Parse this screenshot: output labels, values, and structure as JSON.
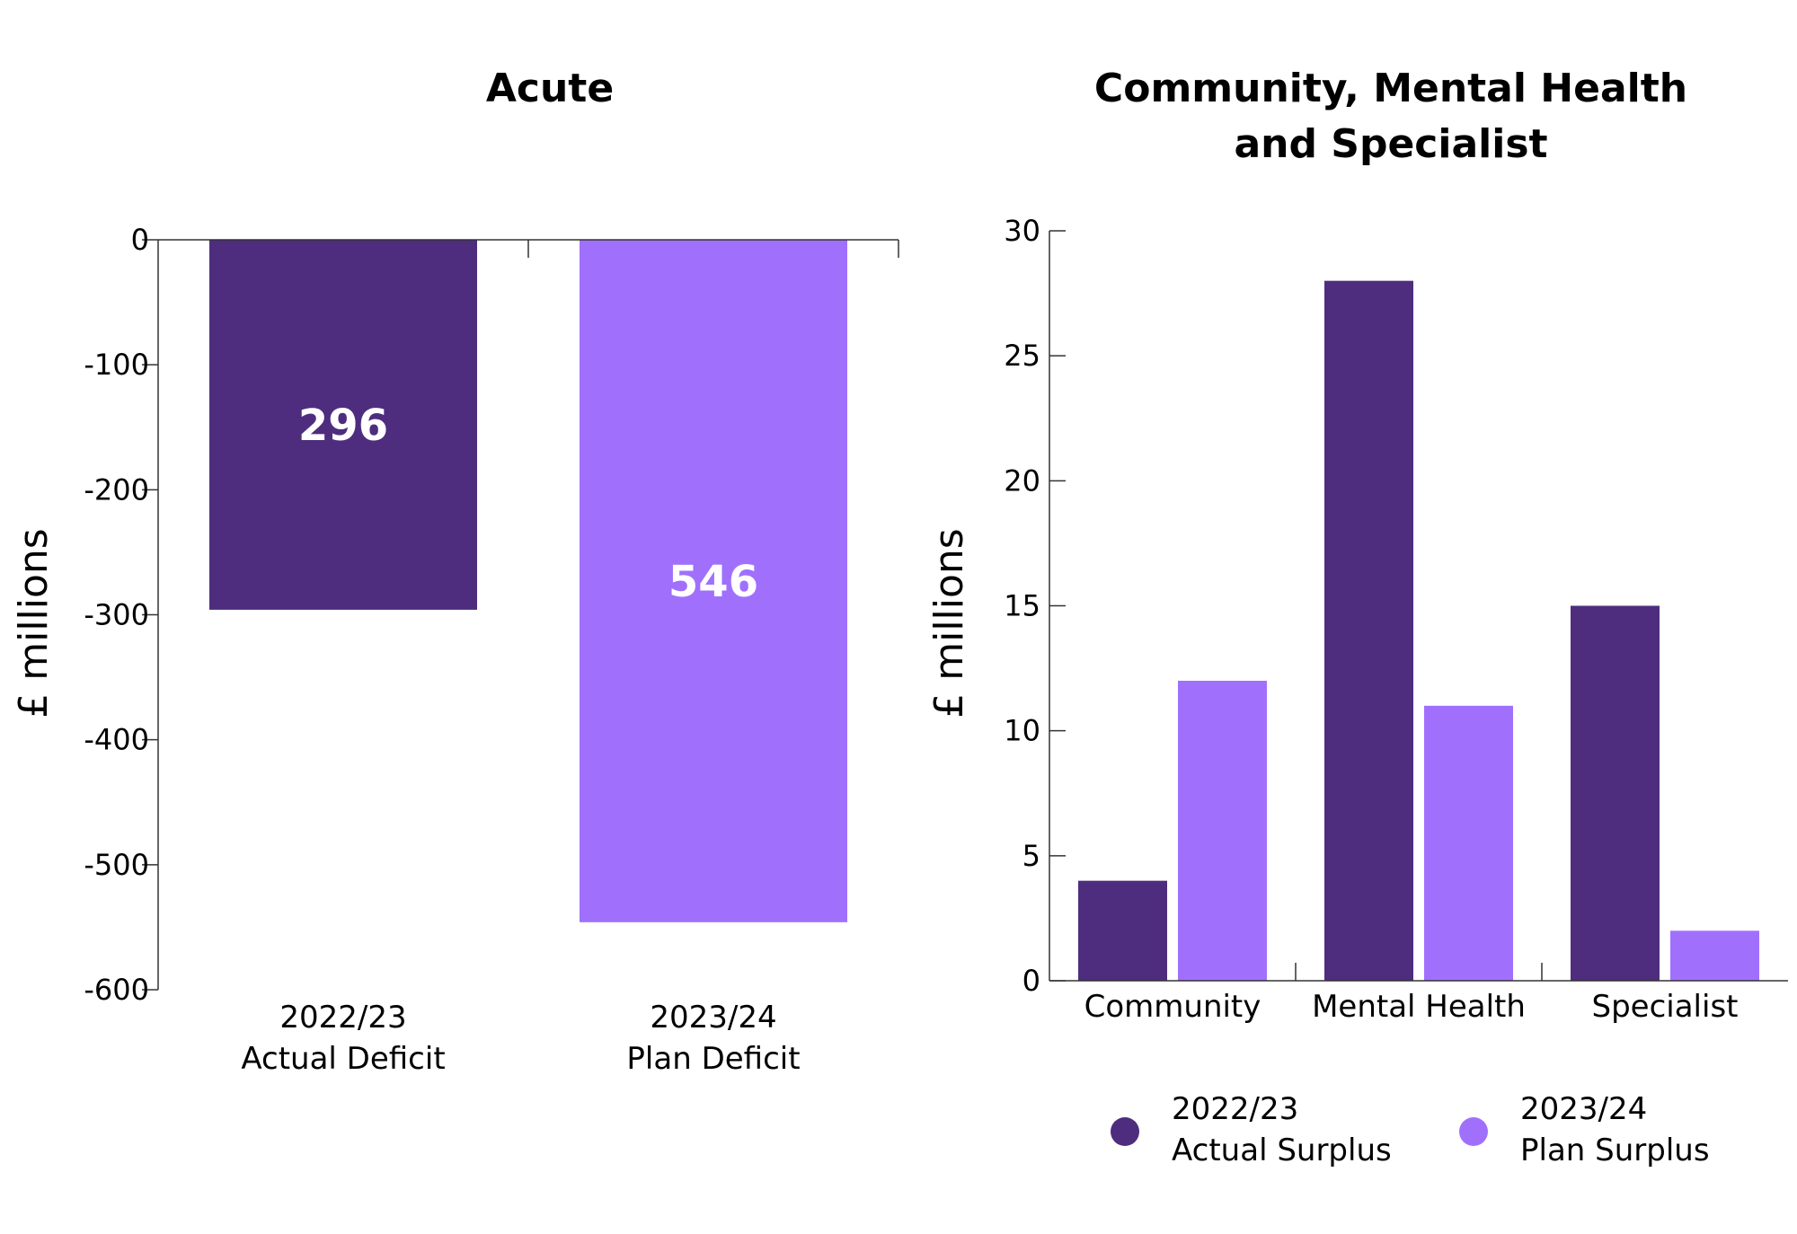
{
  "colors": {
    "actual": "#4e2d7e",
    "plan": "#a070fd"
  },
  "chart_data": [
    {
      "type": "bar",
      "title": "Acute",
      "ylabel": "£ millions",
      "ylim": [
        -600,
        0
      ],
      "yticks": [
        "0",
        "-100",
        "-200",
        "-300",
        "-400",
        "-500",
        "-600"
      ],
      "categories": [
        [
          "2022/23",
          "Actual Deficit"
        ],
        [
          "2023/24",
          "Plan Deficit"
        ]
      ],
      "values": [
        -296,
        -546
      ],
      "data_labels": [
        "296",
        "546"
      ],
      "colors": [
        "actual",
        "plan"
      ]
    },
    {
      "type": "bar",
      "title_lines": [
        "Community, Mental Health",
        "and Specialist"
      ],
      "ylabel": "£ millions",
      "ylim": [
        0,
        30
      ],
      "yticks": [
        "0",
        "5",
        "10",
        "15",
        "20",
        "25",
        "30"
      ],
      "categories": [
        "Community",
        "Mental Health",
        "Specialist"
      ],
      "series": [
        {
          "name": "2022/23 Actual Surplus",
          "values": [
            4,
            28,
            15
          ]
        },
        {
          "name": "2023/24 Plan Surplus",
          "values": [
            12,
            11,
            2
          ]
        }
      ],
      "legend": {
        "position": "bottom",
        "items": [
          {
            "line1": "2022/23",
            "line2": "Actual Surplus",
            "color": "actual"
          },
          {
            "line1": "2023/24",
            "line2": "Plan Surplus",
            "color": "plan"
          }
        ]
      }
    }
  ]
}
